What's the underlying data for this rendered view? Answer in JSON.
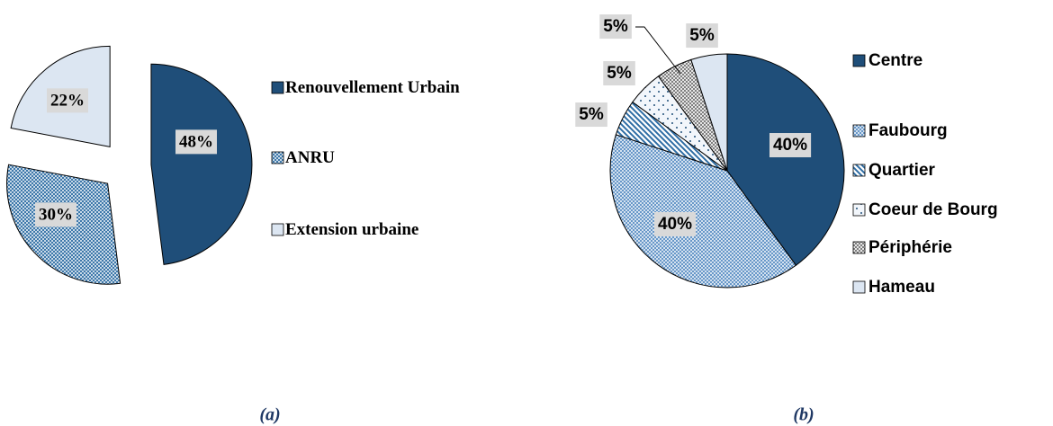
{
  "chart_data": [
    {
      "type": "pie",
      "caption": "(a)",
      "categories": [
        "Renouvellement Urbain",
        "ANRU",
        "Extension urbaine"
      ],
      "values": [
        48,
        30,
        22
      ],
      "value_labels": [
        "48%",
        "30%",
        "22%"
      ],
      "colors": [
        "#1f4e79",
        "#2e6da4",
        "#dce6f2"
      ],
      "patterns": [
        "solid",
        "crosshatch",
        "solid"
      ],
      "exploded": true
    },
    {
      "type": "pie",
      "caption": "(b)",
      "categories": [
        "Centre",
        "Faubourg",
        "Quartier",
        "Coeur de Bourg",
        "Périphérie",
        "Hameau"
      ],
      "values": [
        40,
        40,
        5,
        5,
        5,
        5
      ],
      "value_labels": [
        "40%",
        "40%",
        "5%",
        "5%",
        "5%",
        "5%"
      ],
      "colors": [
        "#1f4e79",
        "#5b8fc4",
        "#2e6da4",
        "#1f4e79",
        "#7f7f7f",
        "#dce6f2"
      ],
      "patterns": [
        "solid",
        "crosshatch",
        "stripes",
        "dots",
        "checker",
        "solid"
      ],
      "exploded": false
    }
  ]
}
